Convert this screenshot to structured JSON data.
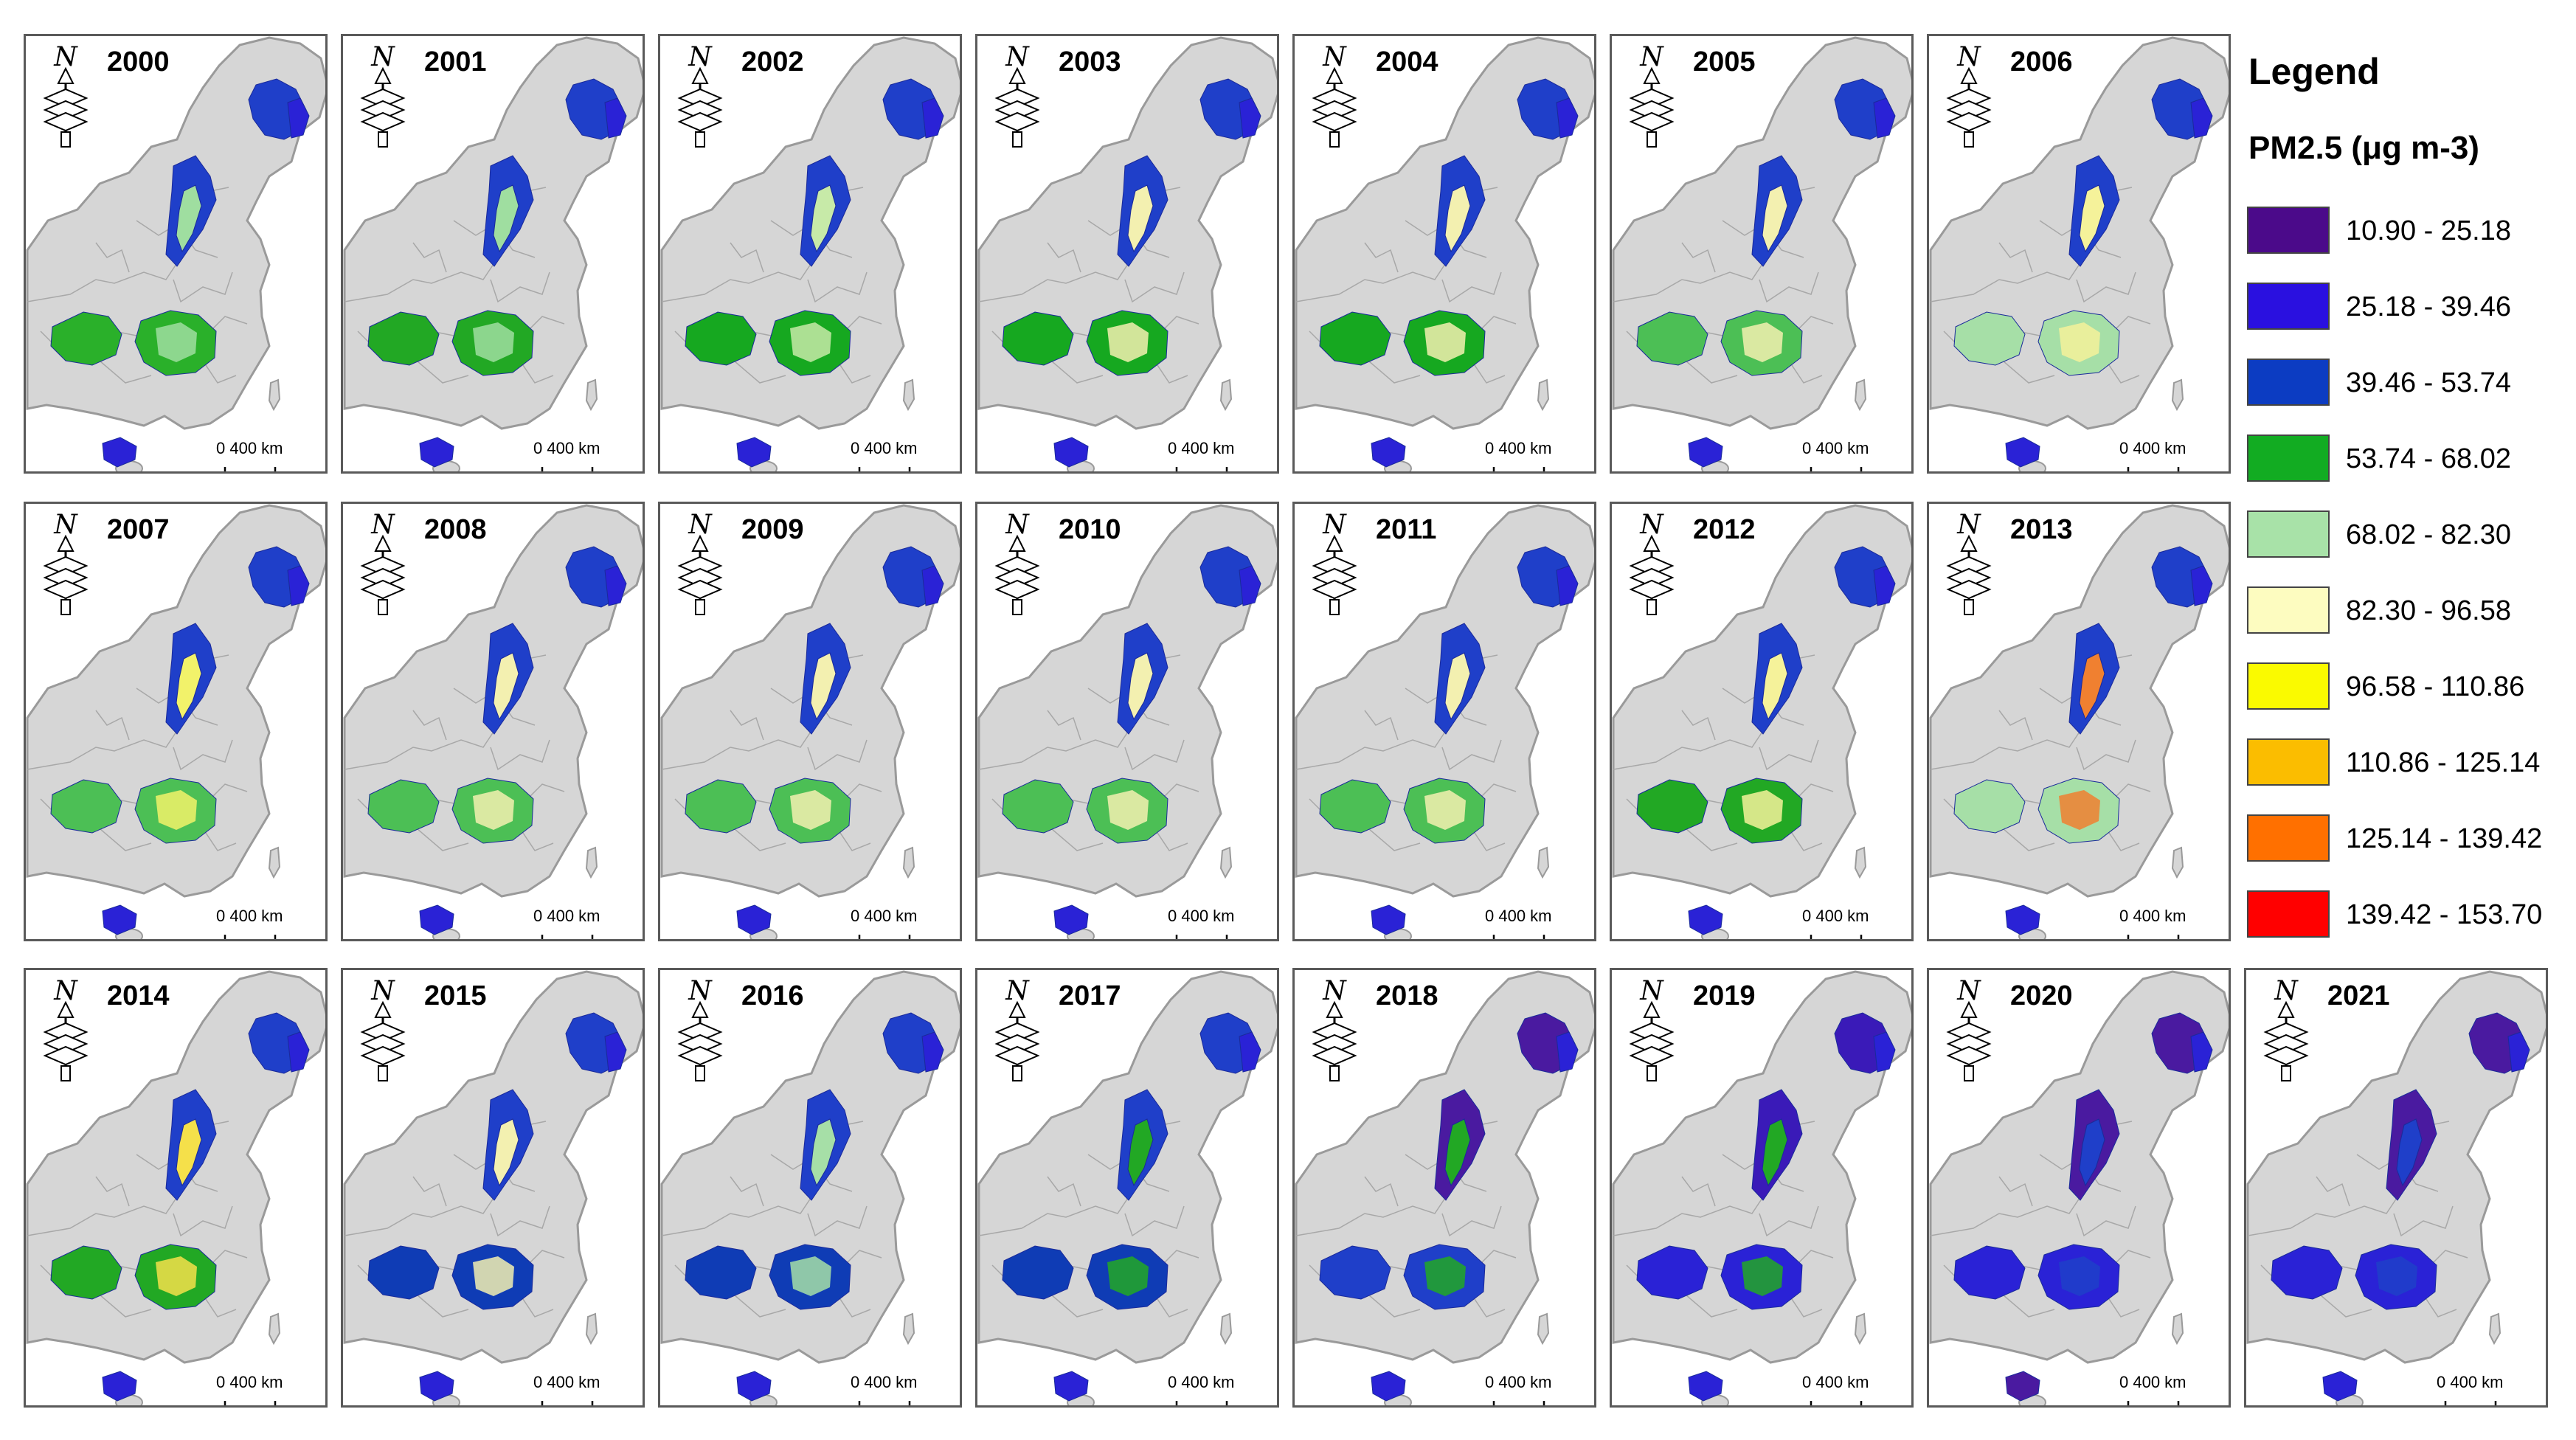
{
  "maps": [
    {
      "year": "2000",
      "palette": [
        "#1f3fc9",
        "#2a22d6",
        "#0f3cb5",
        "#2ab02a",
        "#9fdea0",
        "#1f3fc9",
        "#2a22d6"
      ]
    },
    {
      "year": "2001",
      "palette": [
        "#1f3fc9",
        "#2a22d6",
        "#0f3cb5",
        "#22a824",
        "#9fdea0",
        "#1f3fc9",
        "#2a22d6"
      ]
    },
    {
      "year": "2002",
      "palette": [
        "#1f3fc9",
        "#2a22d6",
        "#0f3cb5",
        "#16a820",
        "#c7eaa8",
        "#1f3fc9",
        "#2a22d6"
      ]
    },
    {
      "year": "2003",
      "palette": [
        "#1f3fc9",
        "#2a22d6",
        "#0f3cb5",
        "#16a820",
        "#f3f0b0",
        "#1f3fc9",
        "#2a22d6"
      ]
    },
    {
      "year": "2004",
      "palette": [
        "#1f3fc9",
        "#2a22d6",
        "#0f3cb5",
        "#16a820",
        "#f3f0b0",
        "#1f3fc9",
        "#2a22d6"
      ]
    },
    {
      "year": "2005",
      "palette": [
        "#1f3fc9",
        "#2a22d6",
        "#0f3cb5",
        "#4cbf55",
        "#f3f0b0",
        "#1f3fc9",
        "#2a22d6"
      ]
    },
    {
      "year": "2006",
      "palette": [
        "#1f3fc9",
        "#2a22d6",
        "#0f3cb5",
        "#a6dfa7",
        "#f5f29a",
        "#1f3fc9",
        "#2a22d6"
      ]
    },
    {
      "year": "2007",
      "palette": [
        "#1f3fc9",
        "#2a22d6",
        "#0f3cb5",
        "#4cbf55",
        "#f2f26a",
        "#1f3fc9",
        "#2a22d6"
      ]
    },
    {
      "year": "2008",
      "palette": [
        "#1f3fc9",
        "#2a22d6",
        "#0f3cb5",
        "#4cbf55",
        "#f3f0b0",
        "#1f3fc9",
        "#2a22d6"
      ]
    },
    {
      "year": "2009",
      "palette": [
        "#1f3fc9",
        "#2a22d6",
        "#0f3cb5",
        "#4cbf55",
        "#f3f0b0",
        "#1f3fc9",
        "#2a22d6"
      ]
    },
    {
      "year": "2010",
      "palette": [
        "#1f3fc9",
        "#2a22d6",
        "#0f3cb5",
        "#4cbf55",
        "#f3f0b0",
        "#1f3fc9",
        "#2a22d6"
      ]
    },
    {
      "year": "2011",
      "palette": [
        "#1f3fc9",
        "#2a22d6",
        "#0f3cb5",
        "#4cbf55",
        "#f3f0b0",
        "#1f3fc9",
        "#2a22d6"
      ]
    },
    {
      "year": "2012",
      "palette": [
        "#1f3fc9",
        "#2a22d6",
        "#0f3cb5",
        "#22a824",
        "#f5f29a",
        "#1f3fc9",
        "#2a22d6"
      ]
    },
    {
      "year": "2013",
      "palette": [
        "#1f3fc9",
        "#2a22d6",
        "#0f3cb5",
        "#a6dfa7",
        "#f08030",
        "#1f3fc9",
        "#2a22d6"
      ]
    },
    {
      "year": "2014",
      "palette": [
        "#1f3fc9",
        "#2a22d6",
        "#0f3cb5",
        "#22a824",
        "#f5e04a",
        "#1f3fc9",
        "#2a22d6"
      ]
    },
    {
      "year": "2015",
      "palette": [
        "#1f3fc9",
        "#2a22d6",
        "#0f3cb5",
        "#0f3cb5",
        "#f3f0b0",
        "#1f3fc9",
        "#2a22d6"
      ]
    },
    {
      "year": "2016",
      "palette": [
        "#1f3fc9",
        "#2a22d6",
        "#0f3cb5",
        "#0f3cb5",
        "#a6dfa7",
        "#1f3fc9",
        "#2a22d6"
      ]
    },
    {
      "year": "2017",
      "palette": [
        "#1f3fc9",
        "#2a22d6",
        "#0f3cb5",
        "#0f3cb5",
        "#22a824",
        "#1f3fc9",
        "#2a22d6"
      ]
    },
    {
      "year": "2018",
      "palette": [
        "#4a1aa0",
        "#2a22d6",
        "#1f3fc9",
        "#1f3fc9",
        "#22a824",
        "#2a22d6",
        "#2a22d6"
      ]
    },
    {
      "year": "2019",
      "palette": [
        "#3a1ab8",
        "#2a22d6",
        "#1f3fc9",
        "#2a22d6",
        "#22a824",
        "#2a22d6",
        "#2a22d6"
      ]
    },
    {
      "year": "2020",
      "palette": [
        "#4a1aa0",
        "#2a22d6",
        "#3a1ab8",
        "#2a22d6",
        "#1f3fc9",
        "#2a22d6",
        "#4a1aa0"
      ]
    },
    {
      "year": "2021",
      "palette": [
        "#4a1aa0",
        "#2a22d6",
        "#3a1ab8",
        "#2a22d6",
        "#1f3fc9",
        "#2a22d6",
        "#2a22d6"
      ]
    }
  ],
  "scale_label": "0    400 km",
  "north_label": "N",
  "legend": {
    "title": "Legend",
    "subtitle": "PM2.5 (μg m-3)",
    "classes": [
      {
        "label": "10.90 - 25.18",
        "color": "#4b0a8a"
      },
      {
        "label": "25.18 - 39.46",
        "color": "#2a10e0"
      },
      {
        "label": "39.46 - 53.74",
        "color": "#0c3cc2"
      },
      {
        "label": "53.74 - 68.02",
        "color": "#12ac22"
      },
      {
        "label": "68.02 - 82.30",
        "color": "#a8e2a8"
      },
      {
        "label": "82.30 - 96.58",
        "color": "#fdfcc0"
      },
      {
        "label": "96.58 - 110.86",
        "color": "#fafa00"
      },
      {
        "label": "110.86 - 125.14",
        "color": "#fbbd00"
      },
      {
        "label": "125.14 - 139.42",
        "color": "#ff7000"
      },
      {
        "label": "139.42 - 153.70",
        "color": "#ff0000"
      }
    ]
  }
}
